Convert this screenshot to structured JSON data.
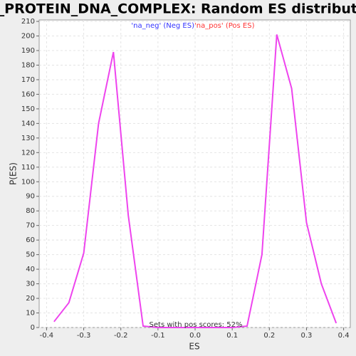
{
  "chart_data": {
    "type": "line",
    "title": "GO_PROTEIN_DNA_COMPLEX: Random ES distribution",
    "x_label": "ES",
    "y_label": "P(ES)",
    "annotation": "Sets with pos scores: 52%",
    "legend": [
      {
        "label": "'na_neg' (Neg ES)",
        "color": "#3333ff"
      },
      {
        "label": "'na_pos' (Pos ES)",
        "color": "#ff3333"
      }
    ],
    "x": [
      -0.38,
      -0.34,
      -0.3,
      -0.26,
      -0.22,
      -0.18,
      -0.14,
      -0.1,
      0.1,
      0.14,
      0.18,
      0.22,
      0.26,
      0.3,
      0.34,
      0.38
    ],
    "series": [
      {
        "color": "#ee44ee",
        "values": [
          4,
          17,
          51,
          140,
          189,
          77,
          1,
          0,
          0,
          1,
          50,
          201,
          164,
          72,
          30,
          3
        ]
      }
    ],
    "xlim": [
      -0.42,
      0.418
    ],
    "xticks": [
      -0.4,
      -0.3,
      -0.2,
      -0.1,
      {
        "value": 0,
        "label": "0.0"
      },
      0.1,
      0.2,
      0.3,
      0.4
    ],
    "ylim": [
      0,
      211
    ],
    "yticks": [
      0,
      10,
      20,
      30,
      40,
      50,
      60,
      70,
      80,
      90,
      100,
      110,
      120,
      130,
      140,
      150,
      160,
      170,
      180,
      190,
      200,
      210
    ],
    "grid": true
  }
}
